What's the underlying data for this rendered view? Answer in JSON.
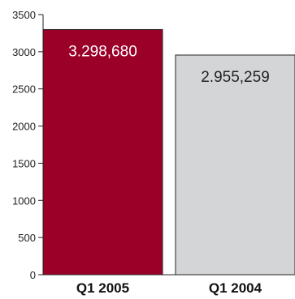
{
  "chart_data": {
    "type": "bar",
    "title": "",
    "xlabel": "",
    "ylabel": "",
    "ylim": [
      0,
      3500
    ],
    "yticks": [
      0,
      500,
      1000,
      1500,
      2000,
      2500,
      3000,
      3500
    ],
    "categories": [
      "Q1 2005",
      "Q1 2004"
    ],
    "values": [
      3298.68,
      2955.259
    ],
    "data_labels": [
      "3.298,680",
      "2.955,259"
    ],
    "bar_colors": [
      "#9b0029",
      "#d4d5d7"
    ],
    "data_label_colors": [
      "#ffffff",
      "#222222"
    ],
    "grid": false,
    "legend": "none"
  }
}
